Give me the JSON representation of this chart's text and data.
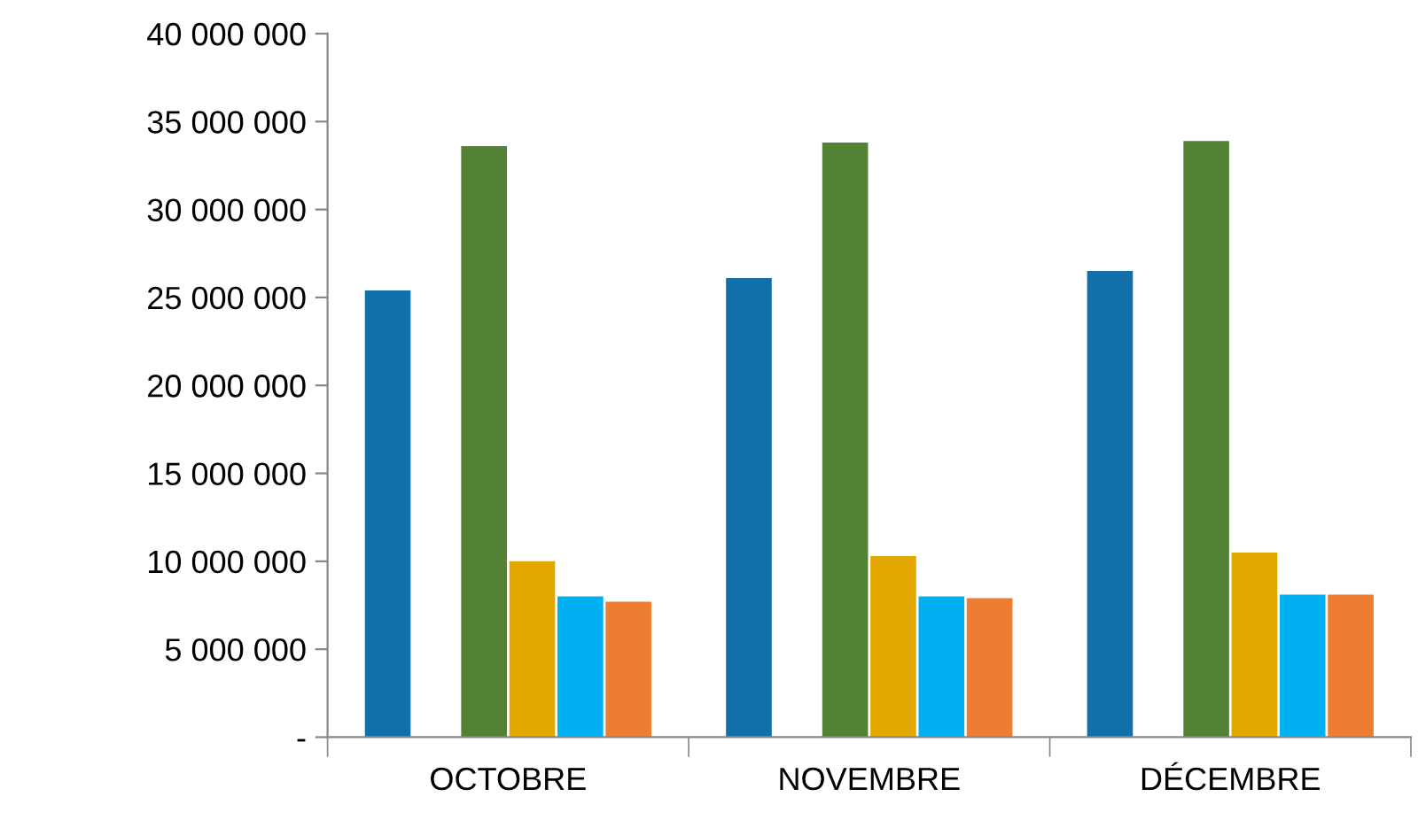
{
  "chart_data": {
    "type": "bar",
    "categories": [
      "OCTOBRE",
      "NOVEMBRE",
      "DÉCEMBRE"
    ],
    "series": [
      {
        "color": "#1170aa",
        "values": [
          25400000,
          26100000,
          26500000
        ]
      },
      {
        "color": "#a5a5a5",
        "values": [
          null,
          null,
          null
        ]
      },
      {
        "color": "#548235",
        "values": [
          33600000,
          33800000,
          33900000
        ]
      },
      {
        "color": "#e3a800",
        "values": [
          10000000,
          10300000,
          10500000
        ]
      },
      {
        "color": "#00b0f0",
        "values": [
          8000000,
          8000000,
          8100000
        ]
      },
      {
        "color": "#ed7d31",
        "values": [
          7700000,
          7900000,
          8100000
        ]
      }
    ],
    "ylim": [
      0,
      40000000
    ],
    "yticks": [
      {
        "value": 0,
        "label": "-"
      },
      {
        "value": 5000000,
        "label": "5 000 000"
      },
      {
        "value": 10000000,
        "label": "10 000 000"
      },
      {
        "value": 15000000,
        "label": "15 000 000"
      },
      {
        "value": 20000000,
        "label": "20 000 000"
      },
      {
        "value": 25000000,
        "label": "25 000 000"
      },
      {
        "value": 30000000,
        "label": "30 000 000"
      },
      {
        "value": 35000000,
        "label": "35 000 000"
      },
      {
        "value": 40000000,
        "label": "40 000 000"
      }
    ],
    "grid": false,
    "legend": false
  }
}
